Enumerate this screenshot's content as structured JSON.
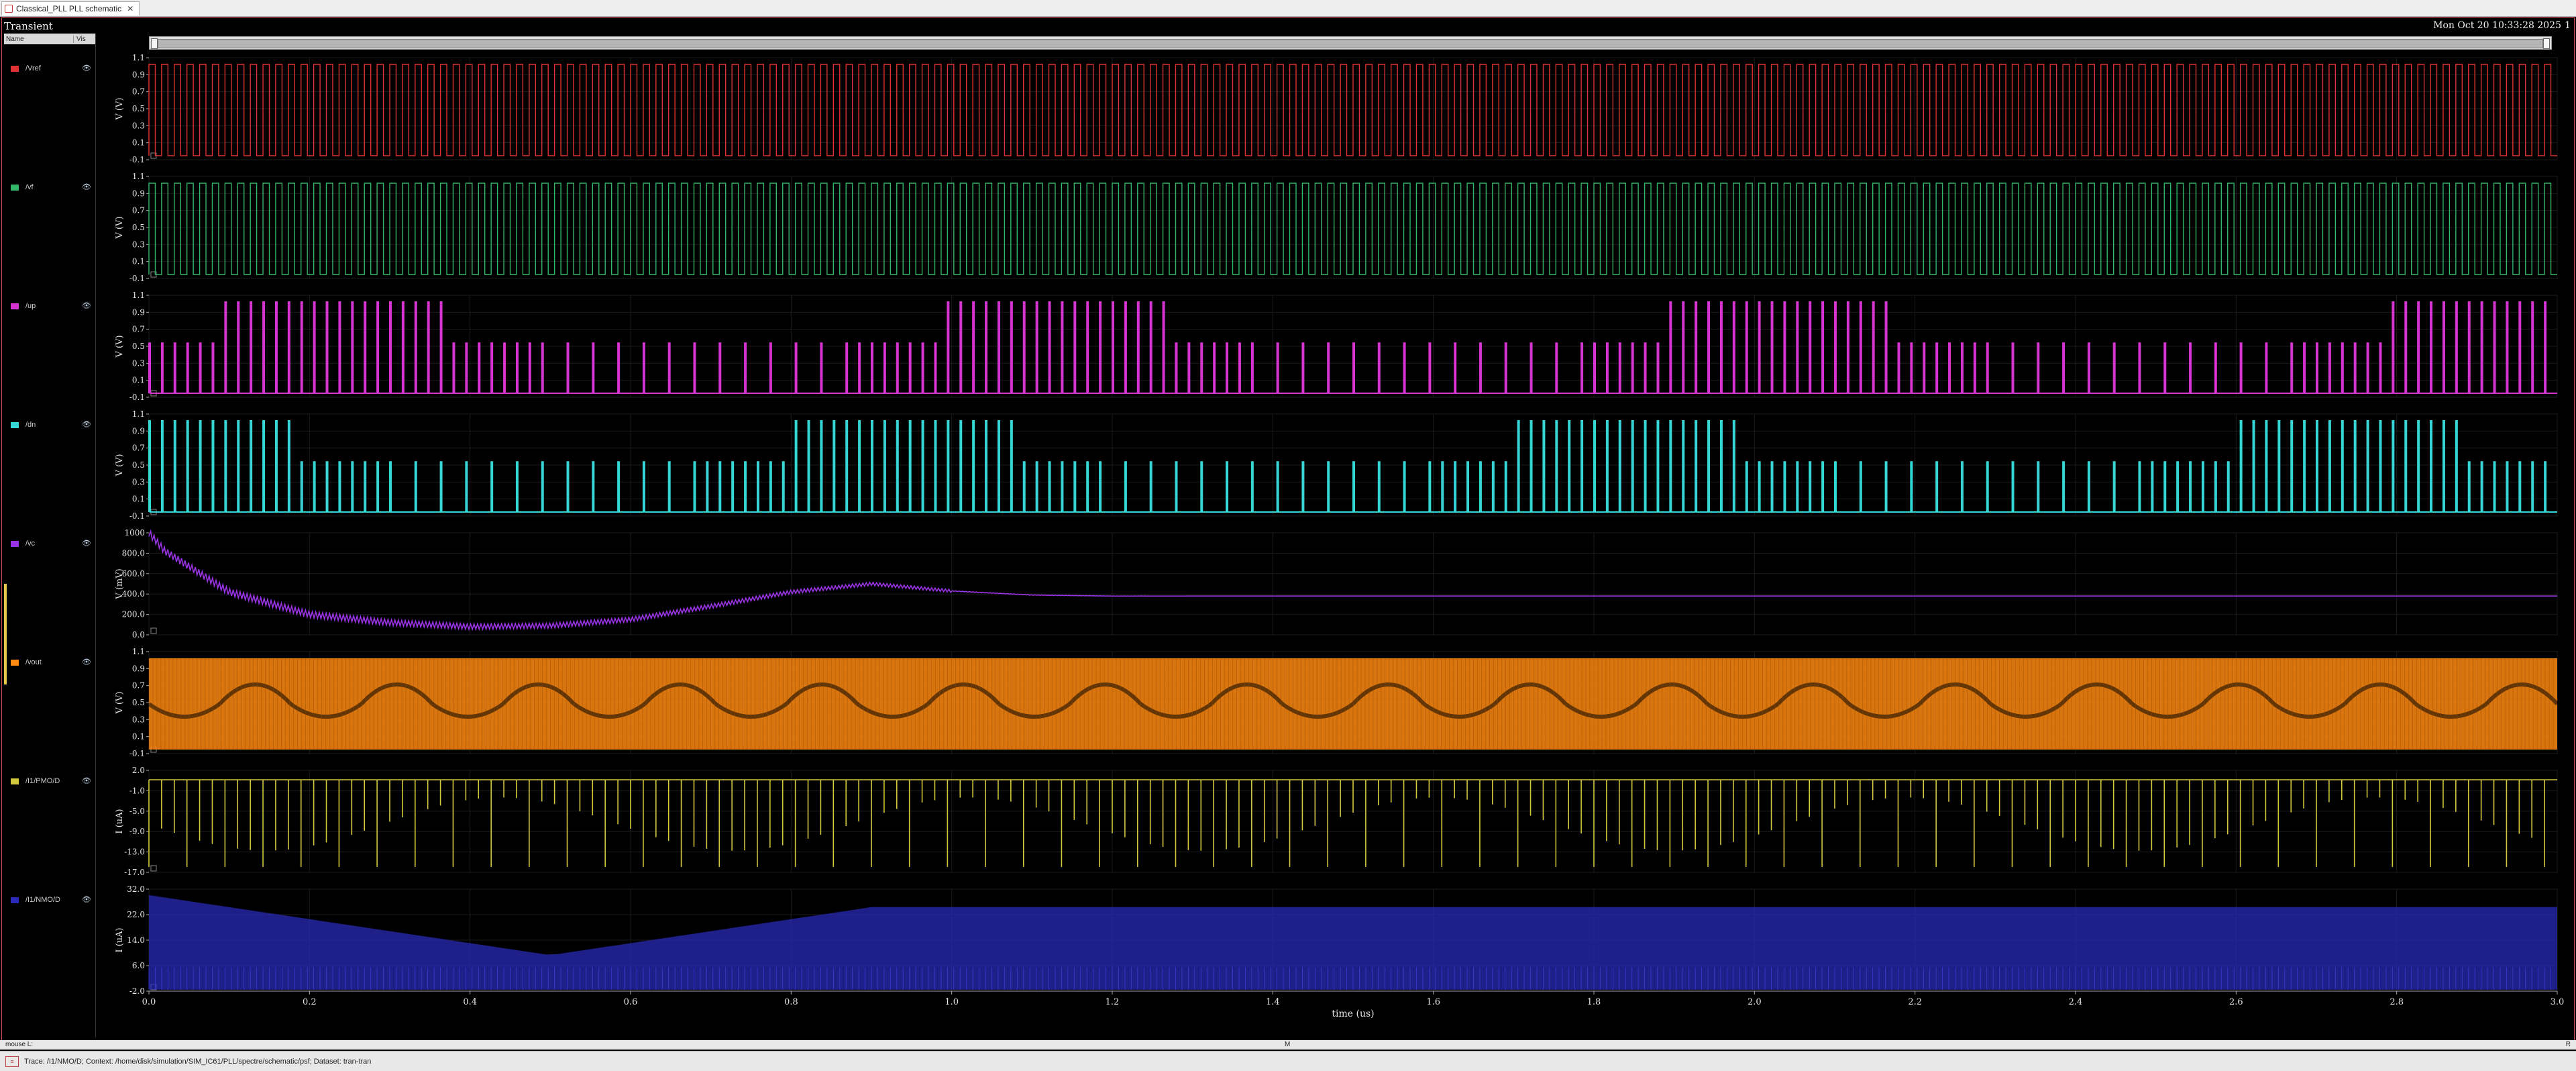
{
  "tab": {
    "title": "Classical_PLL PLL schematic"
  },
  "window": {
    "title": "Transient",
    "timestamp": "Mon Oct 20 10:33:28 2025",
    "corner_index": "1"
  },
  "trace_panel": {
    "col_name": "Name",
    "col_vis": "Vis"
  },
  "signals": [
    {
      "name": "/Vref",
      "color": "#e03232",
      "ylabel": "V (V)",
      "ticks": [
        "1.1",
        "0.9",
        "0.7",
        "0.5",
        "0.3",
        "0.1",
        "-0.1"
      ],
      "kind": "square"
    },
    {
      "name": "/vf",
      "color": "#33b86a",
      "ylabel": "V (V)",
      "ticks": [
        "1.1",
        "0.9",
        "0.7",
        "0.5",
        "0.3",
        "0.1",
        "-0.1"
      ],
      "kind": "square"
    },
    {
      "name": "/up",
      "color": "#d634d0",
      "ylabel": "V (V)",
      "ticks": [
        "1.1",
        "0.9",
        "0.7",
        "0.5",
        "0.3",
        "0.1",
        "-0.1"
      ],
      "kind": "pulse"
    },
    {
      "name": "/dn",
      "color": "#37d6d6",
      "ylabel": "V (V)",
      "ticks": [
        "1.1",
        "0.9",
        "0.7",
        "0.5",
        "0.3",
        "0.1",
        "-0.1"
      ],
      "kind": "pulse"
    },
    {
      "name": "/vc",
      "color": "#9a33e6",
      "ylabel": "V (mV)",
      "ticks": [
        "1000",
        "800.0",
        "600.0",
        "400.0",
        "200.0",
        "0.0"
      ],
      "kind": "vc"
    },
    {
      "name": "/vout",
      "color": "#ff8a12",
      "ylabel": "V (V)",
      "ticks": [
        "1.1",
        "0.9",
        "0.7",
        "0.5",
        "0.3",
        "0.1",
        "-0.1"
      ],
      "kind": "dense"
    },
    {
      "name": "/I1/PMO/D",
      "color": "#d4c83c",
      "ylabel": "I (uA)",
      "ticks": [
        "2.0",
        "-1.0",
        "-5.0",
        "-9.0",
        "-13.0",
        "-17.0"
      ],
      "kind": "spike"
    },
    {
      "name": "/I1/NMO/D",
      "color": "#2a2ab8",
      "ylabel": "I (uA)",
      "ticks": [
        "32.0",
        "22.0",
        "14.0",
        "6.0",
        "-2.0"
      ],
      "kind": "band"
    }
  ],
  "x_axis": {
    "label": "time (us)",
    "ticks": [
      "0.0",
      "0.2",
      "0.4",
      "0.6",
      "0.8",
      "1.0",
      "1.2",
      "1.4",
      "1.6",
      "1.8",
      "2.0",
      "2.2",
      "2.4",
      "2.6",
      "2.8",
      "3.0"
    ]
  },
  "chart_data": {
    "type": "line",
    "xlabel": "time (us)",
    "xlim": [
      0,
      3.0
    ],
    "series": [
      {
        "name": "/Vref",
        "ylabel": "V (V)",
        "ylim": [
          -0.1,
          1.1
        ]
      },
      {
        "name": "/vf",
        "ylabel": "V (V)",
        "ylim": [
          -0.1,
          1.1
        ]
      },
      {
        "name": "/up",
        "ylabel": "V (V)",
        "ylim": [
          -0.1,
          1.1
        ]
      },
      {
        "name": "/dn",
        "ylabel": "V (V)",
        "ylim": [
          -0.1,
          1.1
        ]
      },
      {
        "name": "/vc",
        "ylabel": "V (mV)",
        "ylim": [
          0,
          1000
        ],
        "x": [
          0.0,
          0.02,
          0.1,
          0.2,
          0.3,
          0.4,
          0.5,
          0.6,
          0.7,
          0.8,
          0.9,
          1.0,
          1.1,
          1.2,
          1.5,
          2.0,
          2.5,
          3.0
        ],
        "y": [
          1000,
          820,
          420,
          200,
          120,
          80,
          90,
          150,
          280,
          420,
          500,
          430,
          390,
          380,
          380,
          380,
          380,
          380
        ]
      },
      {
        "name": "/vout",
        "ylabel": "V (V)",
        "ylim": [
          -0.1,
          1.1
        ]
      },
      {
        "name": "/I1/PMO/D",
        "ylabel": "I (uA)",
        "ylim": [
          -17,
          2
        ]
      },
      {
        "name": "/I1/NMO/D",
        "ylabel": "I (uA)",
        "ylim": [
          -2,
          32
        ]
      }
    ]
  },
  "status": {
    "left": "mouse L:",
    "mid": "M",
    "right": "R"
  },
  "message": {
    "text": "Trace: /I1/NMO/D; Context: /home/disk/simulation/SIM_IC61/PLL/spectre/schematic/psf; Dataset: tran-tran"
  }
}
